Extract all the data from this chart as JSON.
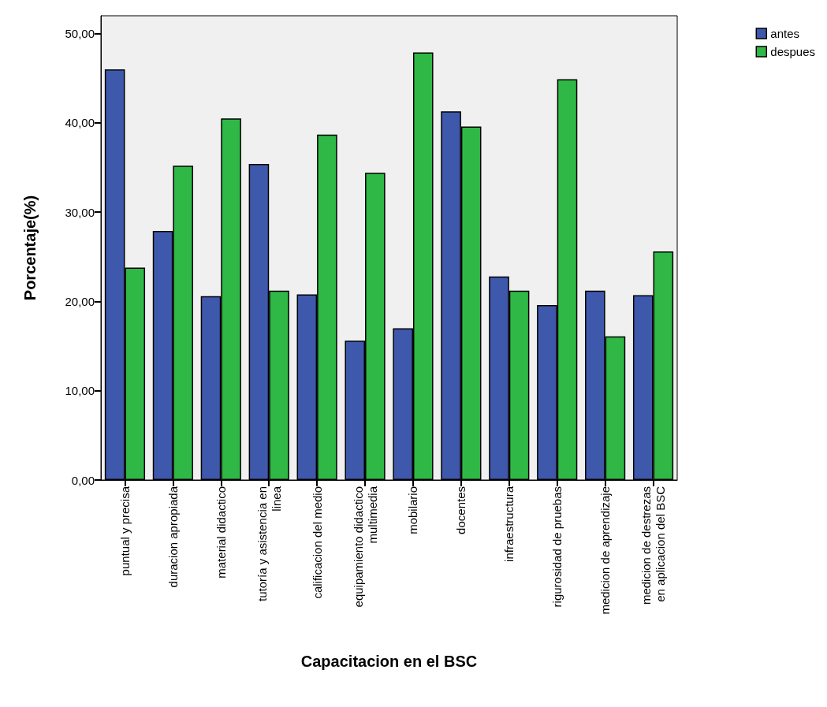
{
  "chart_data": {
    "type": "bar",
    "xlabel": "Capacitacion en el BSC",
    "ylabel": "Porcentaje(%)",
    "categories": [
      "puntual y precisa",
      "duracion apropiada",
      "material didactico",
      "tutoría y asistencia en\nlinea",
      "calificacion del medio",
      "equipamiento didactico\nmultimedia",
      "mobilario",
      "docentes",
      "infraestructura",
      "rigurosidad de pruebas",
      "medicion de aprendizaje",
      "medicion de destrezas\nen aplicacion del BSC"
    ],
    "series": [
      {
        "name": "antes",
        "color": "#3e58ac",
        "values": [
          46.0,
          27.9,
          20.6,
          35.4,
          20.8,
          15.6,
          17.0,
          41.3,
          22.8,
          19.6,
          21.2,
          20.7
        ]
      },
      {
        "name": "despues",
        "color": "#2fb846",
        "values": [
          23.8,
          35.2,
          40.5,
          21.2,
          38.7,
          34.4,
          47.9,
          39.6,
          21.2,
          44.9,
          16.1,
          25.6
        ]
      }
    ],
    "ylim": [
      0,
      52
    ],
    "yticks": [
      {
        "value": 0,
        "label": "0,00"
      },
      {
        "value": 10,
        "label": "10,00"
      },
      {
        "value": 20,
        "label": "20,00"
      },
      {
        "value": 30,
        "label": "30,00"
      },
      {
        "value": 40,
        "label": "40,00"
      },
      {
        "value": 50,
        "label": "50,00"
      }
    ],
    "grid": false,
    "legend": "top right"
  }
}
